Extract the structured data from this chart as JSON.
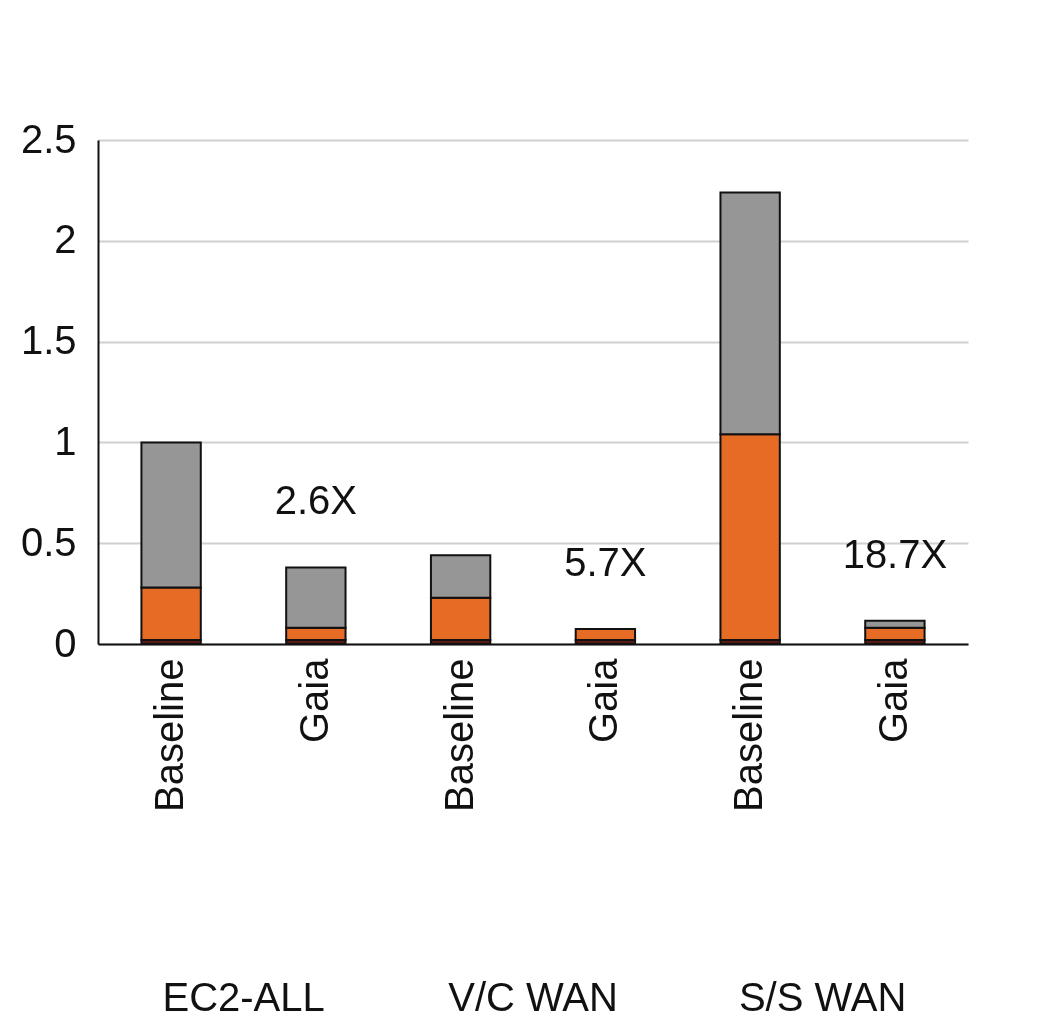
{
  "chart_data": {
    "type": "bar",
    "stacked": true,
    "categories": [
      "Baseline",
      "Gaia",
      "Baseline",
      "Gaia",
      "Baseline",
      "Gaia"
    ],
    "series": [
      {
        "color": "#5a1a14",
        "values": [
          0.02,
          0.02,
          0.02,
          0.02,
          0.02,
          0.02
        ]
      },
      {
        "color": "#e66c26",
        "values": [
          0.26,
          0.06,
          0.21,
          0.055,
          1.02,
          0.06
        ]
      },
      {
        "color": "#969696",
        "values": [
          0.72,
          0.3,
          0.21,
          null,
          1.2,
          0.035
        ]
      }
    ],
    "ylim": [
      0,
      2.5
    ],
    "yticks": [
      0,
      0.5,
      1,
      1.5,
      2,
      2.5
    ],
    "grid": "y",
    "annotations": [
      "2.6X",
      "5.7X",
      "18.7X",
      "EC2-ALL",
      "V/C WAN",
      "S/S WAN"
    ]
  }
}
